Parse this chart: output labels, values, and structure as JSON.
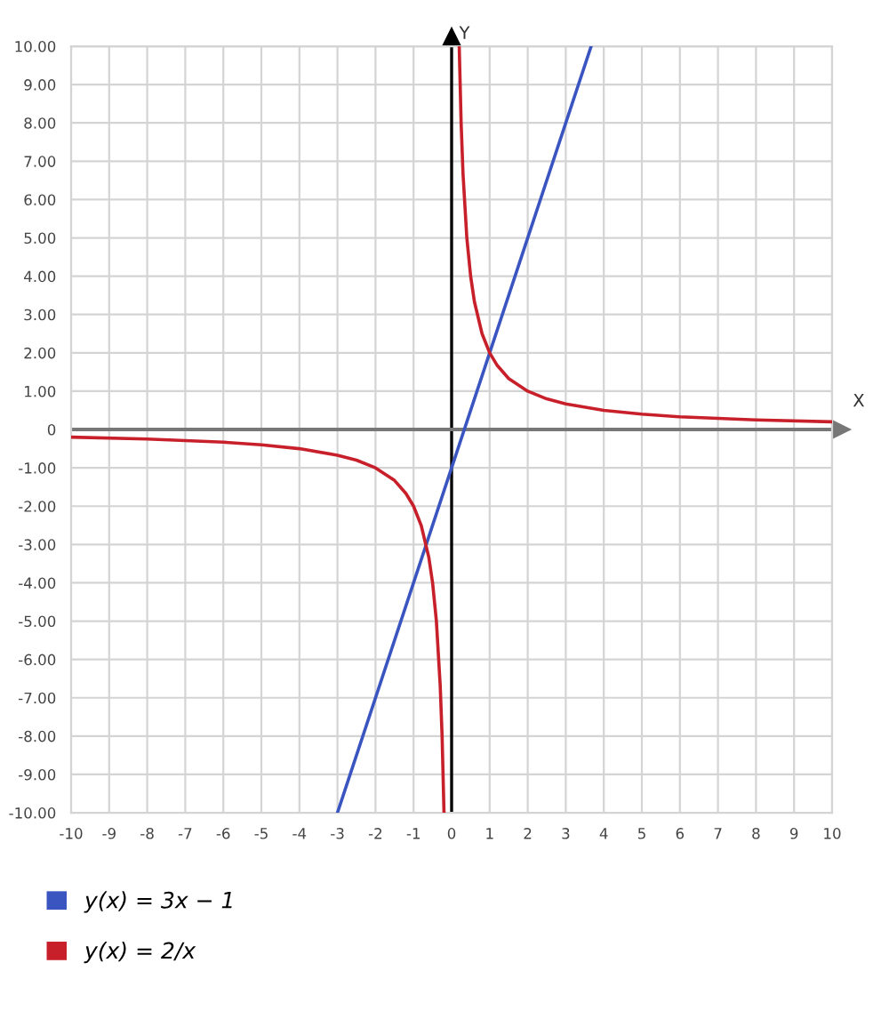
{
  "chart_data": {
    "type": "line",
    "xlabel": "X",
    "ylabel": "Y",
    "xlim": [
      -10,
      10
    ],
    "ylim": [
      -10,
      10
    ],
    "xticks": [
      -10,
      -9,
      -8,
      -7,
      -6,
      -5,
      -4,
      -3,
      -2,
      -1,
      0,
      1,
      2,
      3,
      4,
      5,
      6,
      7,
      8,
      9,
      10
    ],
    "yticks": [
      {
        "value": -10,
        "label": "-10.00"
      },
      {
        "value": -9,
        "label": "-9.00"
      },
      {
        "value": -8,
        "label": "-8.00"
      },
      {
        "value": -7,
        "label": "-7.00"
      },
      {
        "value": -6,
        "label": "-6.00"
      },
      {
        "value": -5,
        "label": "-5.00"
      },
      {
        "value": -4,
        "label": "-4.00"
      },
      {
        "value": -3,
        "label": "-3.00"
      },
      {
        "value": -2,
        "label": "-2.00"
      },
      {
        "value": -1,
        "label": "-1.00"
      },
      {
        "value": 0,
        "label": "0"
      },
      {
        "value": 1,
        "label": "1.00"
      },
      {
        "value": 2,
        "label": "2.00"
      },
      {
        "value": 3,
        "label": "3.00"
      },
      {
        "value": 4,
        "label": "4.00"
      },
      {
        "value": 5,
        "label": "5.00"
      },
      {
        "value": 6,
        "label": "6.00"
      },
      {
        "value": 7,
        "label": "7.00"
      },
      {
        "value": 8,
        "label": "8.00"
      },
      {
        "value": 9,
        "label": "9.00"
      },
      {
        "value": 10,
        "label": "10.00"
      }
    ],
    "grid": true,
    "legend": "bottom left",
    "marker": "none",
    "line_style": "solid",
    "ref_lines": [
      {
        "axis": "x",
        "value": 0,
        "color": "#000000"
      },
      {
        "axis": "y",
        "value": 0,
        "color": "#777777"
      }
    ],
    "series": [
      {
        "name": "y(x) = 3x − 1",
        "color": "#3a55c0",
        "x": [
          -3,
          3.667
        ],
        "values": [
          -10,
          10
        ]
      },
      {
        "name": "y(x) = 2/x",
        "color": "#c8202a",
        "x": [
          -10,
          -8,
          -6,
          -5,
          -4,
          -3,
          -2.5,
          -2,
          -1.5,
          -1.2,
          -1,
          -0.8,
          -0.6,
          -0.5,
          -0.4,
          -0.3,
          -0.25,
          -0.2,
          0,
          0.2,
          0.25,
          0.3,
          0.4,
          0.5,
          0.6,
          0.8,
          1,
          1.2,
          1.5,
          2,
          2.5,
          3,
          4,
          5,
          6,
          8,
          10
        ],
        "values": [
          -0.2,
          -0.25,
          -0.33,
          -0.4,
          -0.5,
          -0.67,
          -0.8,
          -1,
          -1.33,
          -1.67,
          -2,
          -2.5,
          -3.33,
          -4,
          -5,
          -6.67,
          -8,
          -10,
          null,
          10,
          8,
          6.67,
          5,
          4,
          3.33,
          2.5,
          2,
          1.67,
          1.33,
          1,
          0.8,
          0.67,
          0.5,
          0.4,
          0.33,
          0.25,
          0.2
        ]
      }
    ]
  }
}
